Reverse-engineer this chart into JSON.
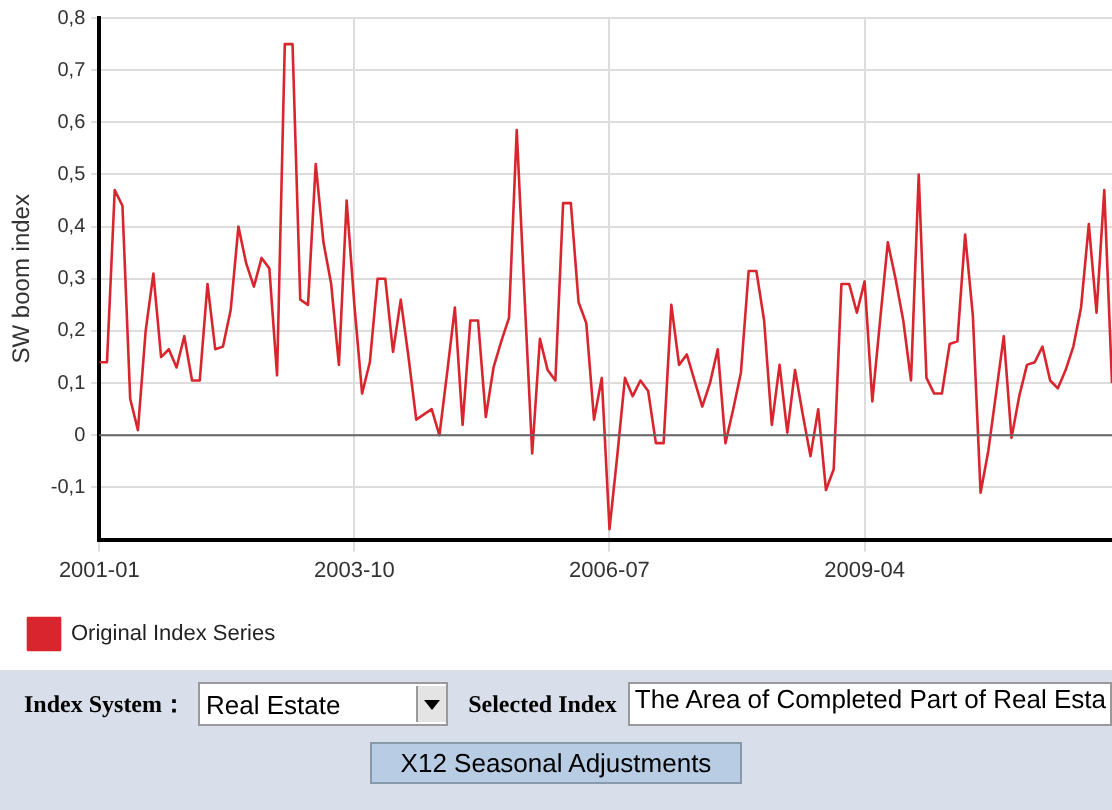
{
  "chart_data": {
    "type": "line",
    "ylabel": "SW boom index",
    "x": [
      "2001-01",
      "2001-02",
      "2001-03",
      "2001-04",
      "2001-05",
      "2001-06",
      "2001-07",
      "2001-08",
      "2001-09",
      "2001-10",
      "2001-11",
      "2001-12",
      "2002-01",
      "2002-02",
      "2002-03",
      "2002-04",
      "2002-05",
      "2002-06",
      "2002-07",
      "2002-08",
      "2002-09",
      "2002-10",
      "2002-11",
      "2002-12",
      "2003-01",
      "2003-02",
      "2003-03",
      "2003-04",
      "2003-05",
      "2003-06",
      "2003-07",
      "2003-08",
      "2003-09",
      "2003-10",
      "2003-11",
      "2003-12",
      "2004-01",
      "2004-02",
      "2004-03",
      "2004-04",
      "2004-05",
      "2004-06",
      "2004-07",
      "2004-08",
      "2004-09",
      "2004-10",
      "2004-11",
      "2004-12",
      "2005-01",
      "2005-02",
      "2005-03",
      "2005-04",
      "2005-05",
      "2005-06",
      "2005-07",
      "2005-08",
      "2005-09",
      "2005-10",
      "2005-11",
      "2005-12",
      "2006-01",
      "2006-02",
      "2006-03",
      "2006-04",
      "2006-05",
      "2006-06",
      "2006-07",
      "2006-08",
      "2006-09",
      "2006-10",
      "2006-11",
      "2006-12",
      "2007-01",
      "2007-02",
      "2007-03",
      "2007-04",
      "2007-05",
      "2007-06",
      "2007-07",
      "2007-08",
      "2007-09",
      "2007-10",
      "2007-11",
      "2007-12",
      "2008-01",
      "2008-02",
      "2008-03",
      "2008-04",
      "2008-05",
      "2008-06",
      "2008-07",
      "2008-08",
      "2008-09",
      "2008-10",
      "2008-11",
      "2008-12",
      "2009-01",
      "2009-02",
      "2009-03",
      "2009-04",
      "2009-05",
      "2009-06",
      "2009-07",
      "2009-08",
      "2009-09",
      "2009-10",
      "2009-11",
      "2009-12",
      "2010-01",
      "2010-02",
      "2010-03",
      "2010-04",
      "2010-05",
      "2010-06",
      "2010-07",
      "2010-08",
      "2010-09",
      "2010-10",
      "2010-11",
      "2010-12",
      "2011-01",
      "2011-02",
      "2011-03",
      "2011-04",
      "2011-05",
      "2011-06",
      "2011-07",
      "2011-08",
      "2011-09",
      "2011-10",
      "2011-11",
      "2011-12"
    ],
    "series": [
      {
        "name": "Original Index Series",
        "color": "#d9262e",
        "values": [
          0.14,
          0.14,
          0.47,
          0.44,
          0.07,
          0.01,
          0.2,
          0.31,
          0.15,
          0.165,
          0.13,
          0.19,
          0.105,
          0.105,
          0.29,
          0.165,
          0.17,
          0.24,
          0.4,
          0.33,
          0.285,
          0.34,
          0.32,
          0.115,
          0.75,
          0.75,
          0.26,
          0.25,
          0.52,
          0.37,
          0.29,
          0.135,
          0.45,
          0.25,
          0.08,
          0.14,
          0.3,
          0.3,
          0.16,
          0.26,
          0.15,
          0.03,
          0.04,
          0.05,
          0.0,
          0.12,
          0.245,
          0.02,
          0.22,
          0.22,
          0.035,
          0.13,
          0.18,
          0.225,
          0.585,
          0.27,
          -0.035,
          0.185,
          0.125,
          0.105,
          0.445,
          0.445,
          0.255,
          0.215,
          0.03,
          0.11,
          -0.18,
          -0.04,
          0.11,
          0.075,
          0.105,
          0.085,
          -0.015,
          -0.015,
          0.25,
          0.135,
          0.155,
          0.105,
          0.055,
          0.1,
          0.165,
          -0.015,
          0.05,
          0.12,
          0.315,
          0.315,
          0.22,
          0.02,
          0.135,
          0.005,
          0.125,
          0.04,
          -0.04,
          0.05,
          -0.105,
          -0.065,
          0.29,
          0.29,
          0.235,
          0.295,
          0.065,
          0.22,
          0.37,
          0.3,
          0.22,
          0.105,
          0.5,
          0.11,
          0.08,
          0.08,
          0.175,
          0.18,
          0.385,
          0.23,
          -0.11,
          -0.03,
          0.08,
          0.19,
          -0.005,
          0.075,
          0.135,
          0.14,
          0.17,
          0.105,
          0.09,
          0.125,
          0.17,
          0.245,
          0.405,
          0.235,
          0.47,
          0.1
        ]
      }
    ],
    "xlim": [
      "2001-01",
      "2011-12"
    ],
    "xticks": [
      "2001-01",
      "2003-10",
      "2006-07",
      "2009-04"
    ],
    "ylim": [
      -0.2,
      0.8
    ],
    "yticks": [
      {
        "value": -0.1,
        "label": "-0,1"
      },
      {
        "value": 0,
        "label": "0"
      },
      {
        "value": 0.1,
        "label": "0,1"
      },
      {
        "value": 0.2,
        "label": "0,2"
      },
      {
        "value": 0.3,
        "label": "0,3"
      },
      {
        "value": 0.4,
        "label": "0,4"
      },
      {
        "value": 0.5,
        "label": "0,5"
      },
      {
        "value": 0.6,
        "label": "0,6"
      },
      {
        "value": 0.7,
        "label": "0,7"
      },
      {
        "value": 0.8,
        "label": "0,8"
      }
    ],
    "ref_lines": [
      {
        "axis": "y",
        "value": 0,
        "color": "#666666"
      }
    ],
    "grid": true,
    "legend": "bottom",
    "marker": "none",
    "line_style": "solid",
    "annotations": [
      "Index System：",
      "Real Estate",
      "Selected Index",
      "The Area of Completed Part of Real Esta",
      "X12 Seasonal Adjustments"
    ]
  }
}
